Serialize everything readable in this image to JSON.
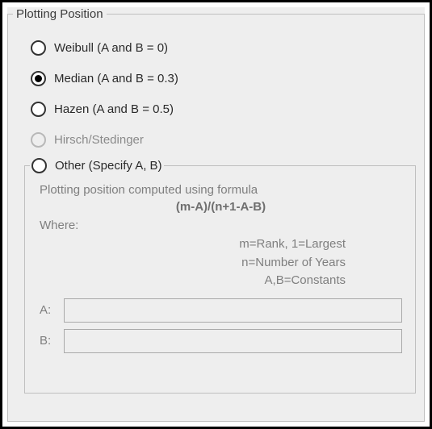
{
  "group": {
    "title": "Plotting Position",
    "options": [
      {
        "label": "Weibull (A and B = 0)",
        "selected": false,
        "disabled": false
      },
      {
        "label": "Median (A and B = 0.3)",
        "selected": true,
        "disabled": false
      },
      {
        "label": "Hazen (A and B = 0.5)",
        "selected": false,
        "disabled": false
      },
      {
        "label": "Hirsch/Stedinger",
        "selected": false,
        "disabled": true
      }
    ],
    "other": {
      "label": "Other (Specify A, B)",
      "selected": false,
      "disabled": false,
      "description": "Plotting position computed using formula",
      "formula": "(m-A)/(n+1-A-B)",
      "where_label": "Where:",
      "defs": {
        "m": "m=Rank, 1=Largest",
        "n": "n=Number of Years",
        "ab": "A,B=Constants"
      },
      "fields": {
        "a": {
          "label": "A:",
          "value": ""
        },
        "b": {
          "label": "B:",
          "value": ""
        }
      }
    }
  },
  "colors": {
    "panel_bg": "#eeeeee",
    "border": "#bfbfbf",
    "text": "#2a2a2a",
    "disabled_text": "#8a8a8a",
    "muted_text": "#7f7f7f",
    "radio_border": "#333333",
    "radio_disabled_border": "#b8b8b8",
    "input_border": "#a9a9a9",
    "frame_border": "#000000"
  }
}
